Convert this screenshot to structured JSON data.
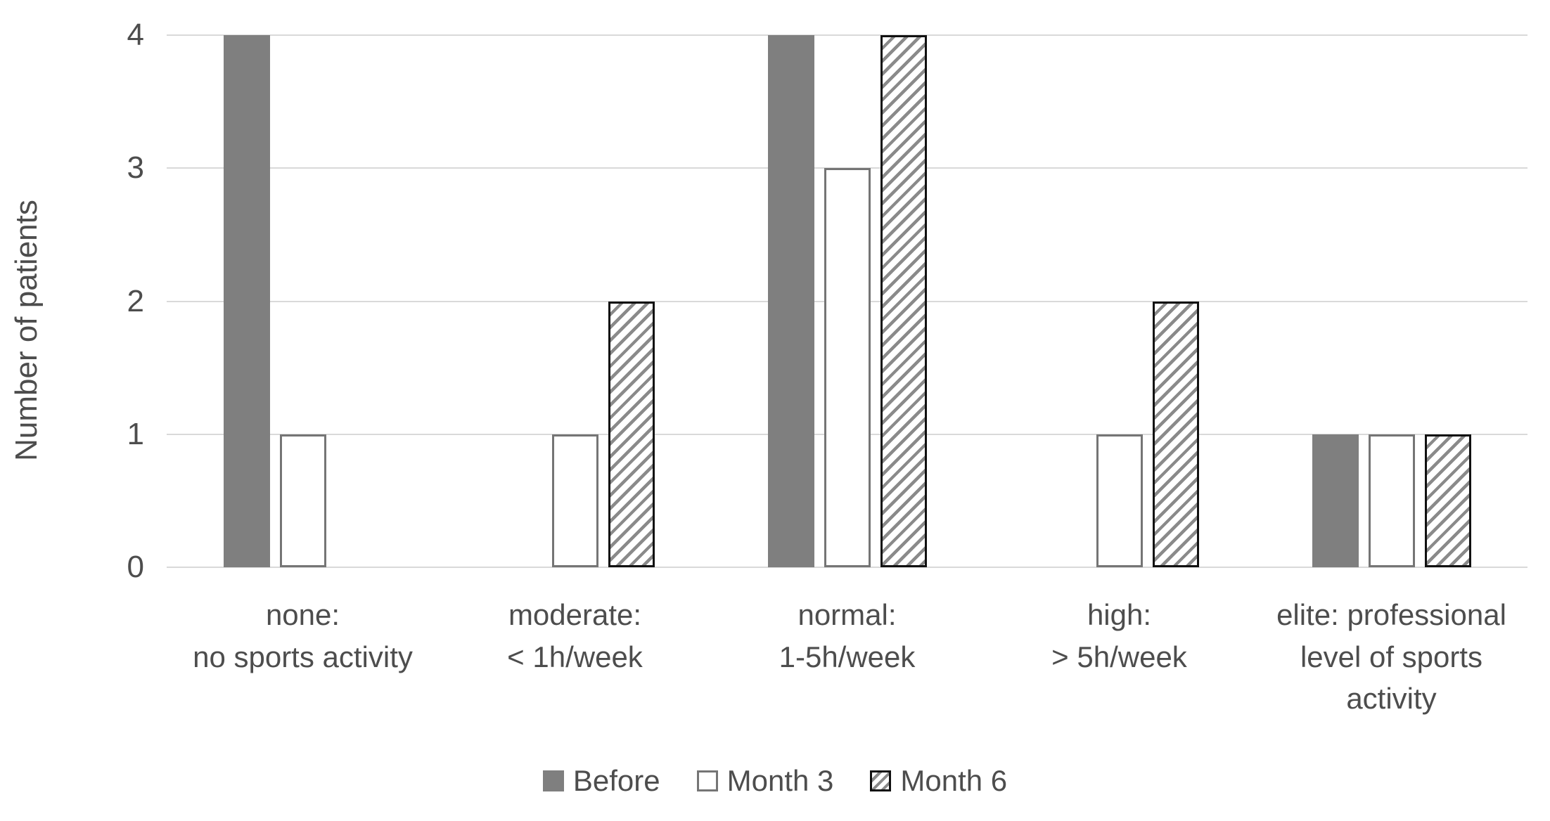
{
  "chart_data": {
    "type": "bar",
    "title": "",
    "ylabel": "Number of patients",
    "xlabel": "",
    "ylim": [
      0,
      4
    ],
    "yticks": [
      0,
      1,
      2,
      3,
      4
    ],
    "grid": true,
    "legend_position": "bottom",
    "categories": [
      "none:\nno sports activity",
      "moderate:\n< 1h/week",
      "normal:\n1-5h/week",
      "high:\n> 5h/week",
      "elite: professional\nlevel of sports\nactivity"
    ],
    "series": [
      {
        "name": "Before",
        "pattern": "solid",
        "values": [
          4,
          0,
          4,
          0,
          1
        ]
      },
      {
        "name": "Month 3",
        "pattern": "outline",
        "values": [
          1,
          1,
          3,
          1,
          1
        ]
      },
      {
        "name": "Month 6",
        "pattern": "hatch",
        "values": [
          0,
          2,
          4,
          2,
          1
        ]
      }
    ]
  },
  "colors": {
    "background": "#ffffff",
    "bar_fill_gray": "#7f7f7f",
    "outline_bar_border": "#757575",
    "hatch_bar_border": "#111111",
    "hatch_stripe": "#8a8a8a",
    "gridline": "#d9d9d9",
    "text": "#4d4d4d"
  }
}
